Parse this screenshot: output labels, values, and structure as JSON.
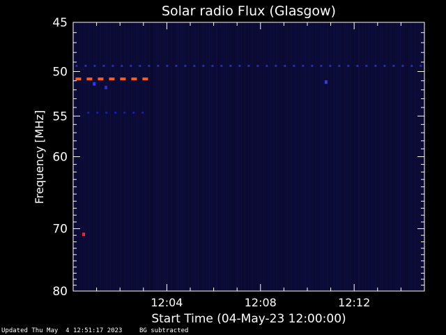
{
  "chart_data": {
    "type": "heatmap",
    "title": "Solar radio Flux (Glasgow)",
    "xlabel": "Start Time (04-May-23 12:00:00)",
    "ylabel": "Frequency [MHz]",
    "x_unit": "minutes after 12:00",
    "xlim": [
      0,
      15
    ],
    "ylim": [
      80,
      45
    ],
    "y_scale": "log",
    "grid": false,
    "x_tick_labels": [
      "12:04",
      "12:08",
      "12:12"
    ],
    "x_tick_values": [
      4,
      8,
      12
    ],
    "y_tick_labels": [
      "45",
      "50",
      "55",
      "60",
      "70",
      "80"
    ],
    "y_tick_values": [
      45,
      50,
      55,
      60,
      70,
      80
    ],
    "features": [
      {
        "kind": "dashed-band",
        "freq_mhz": 49.4,
        "t_start": 0.1,
        "t_end": 15.0,
        "color": "#2626d4"
      },
      {
        "kind": "dashed-band",
        "freq_mhz": 50.8,
        "t_start": 0.1,
        "t_end": 3.2,
        "color": "#ff5a1a"
      },
      {
        "kind": "dashed-band",
        "freq_mhz": 54.6,
        "t_start": 0.6,
        "t_end": 3.1,
        "color": "#1c1ca0"
      },
      {
        "kind": "point",
        "freq_mhz": 51.3,
        "t": 0.9,
        "color": "#3434ff"
      },
      {
        "kind": "point",
        "freq_mhz": 51.7,
        "t": 1.4,
        "color": "#2a2ae0"
      },
      {
        "kind": "point",
        "freq_mhz": 51.1,
        "t": 10.8,
        "color": "#3434ff"
      },
      {
        "kind": "point",
        "freq_mhz": 70.8,
        "t": 0.45,
        "color": "#ff2020"
      }
    ],
    "background_color": "#0a0a2e"
  },
  "footer": {
    "updated": "Updated Thu May  4 12:51:17 2023",
    "bg_note": "BG subtracted"
  }
}
